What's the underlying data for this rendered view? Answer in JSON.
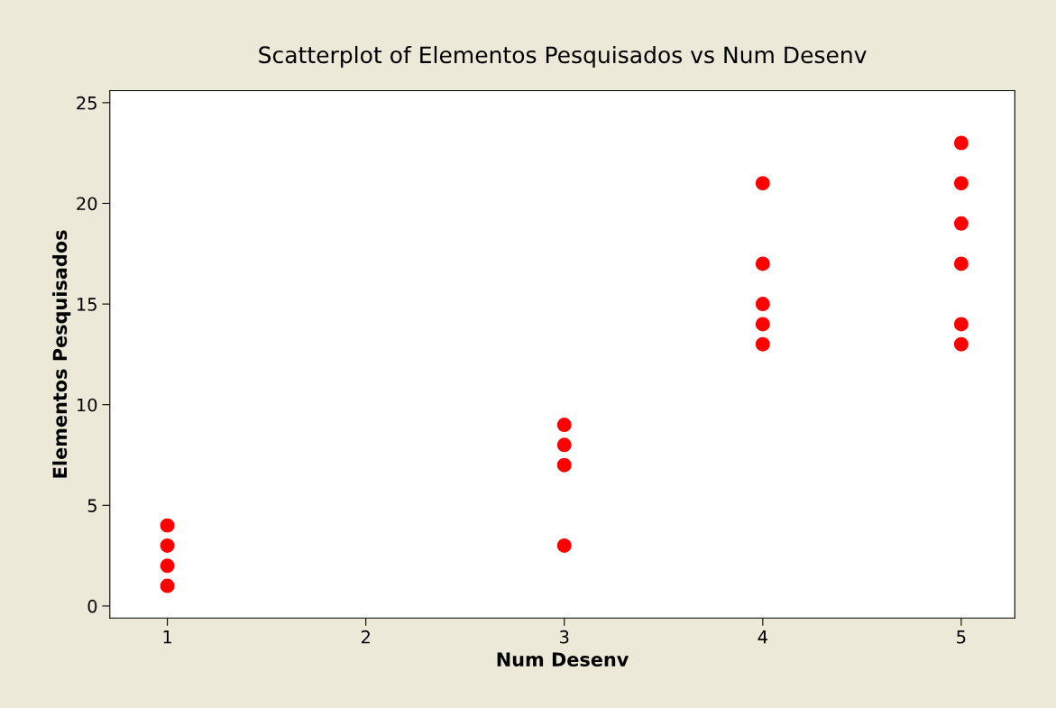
{
  "chart_data": {
    "type": "scatter",
    "title": "Scatterplot of Elementos Pesquisados vs Num Desenv",
    "xlabel": "Num Desenv",
    "ylabel": "Elementos Pesquisados",
    "series": [
      {
        "color": "#ff0000",
        "x": [
          1,
          1,
          1,
          1,
          3,
          3,
          3,
          3,
          4,
          4,
          4,
          4,
          4,
          5,
          5,
          5,
          5,
          5,
          5
        ],
        "values": [
          1,
          2,
          3,
          4,
          3,
          7,
          8,
          9,
          13,
          14,
          15,
          17,
          21,
          13,
          14,
          17,
          19,
          21,
          23
        ]
      }
    ],
    "xlim": [
      0.71,
      5.27
    ],
    "ylim": [
      -0.6,
      25.6
    ],
    "xticks": [
      1,
      2,
      3,
      4,
      5
    ],
    "yticks": [
      0,
      5,
      10,
      15,
      20,
      25
    ],
    "grid": false,
    "legend": false,
    "marker": "circle"
  }
}
